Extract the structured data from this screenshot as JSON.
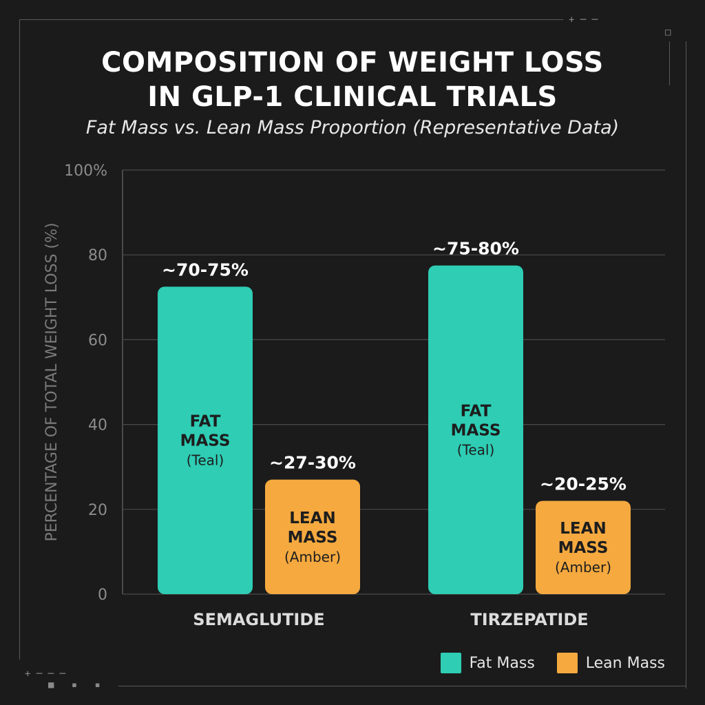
{
  "chart_data": {
    "type": "bar",
    "title_lines": [
      "COMPOSITION OF WEIGHT LOSS",
      "IN GLP-1 CLINICAL TRIALS"
    ],
    "subtitle": "Fat Mass vs. Lean Mass Proportion (Representative Data)",
    "ylabel": "PERCENTAGE OF TOTAL WEIGHT LOSS (%)",
    "xlabel": "",
    "ylim": [
      0,
      100
    ],
    "yticks": [
      0,
      20,
      40,
      60,
      80,
      100
    ],
    "ytick_labels": [
      "0",
      "20",
      "40",
      "60",
      "80",
      "100%"
    ],
    "grid": true,
    "legend_position": "bottom-right",
    "categories": [
      "SEMAGLUTIDE",
      "TIRZEPATIDE"
    ],
    "series": [
      {
        "name": "Fat Mass",
        "color": "#2ecdb4",
        "values": [
          72.5,
          77.5
        ],
        "data_labels": [
          "~70-75%",
          "~75-80%"
        ],
        "inner_label": [
          "FAT",
          "MASS",
          "(Teal)"
        ]
      },
      {
        "name": "Lean Mass",
        "color": "#f5a93f",
        "values": [
          27,
          22
        ],
        "data_labels": [
          "~27-30%",
          "~20-25%"
        ],
        "inner_label": [
          "LEAN",
          "MASS",
          "(Amber)"
        ]
      }
    ]
  },
  "colors": {
    "background": "#1b1b1b",
    "grid": "#4a4a4a",
    "text": "#ffffff",
    "muted": "#8c8c8c"
  }
}
